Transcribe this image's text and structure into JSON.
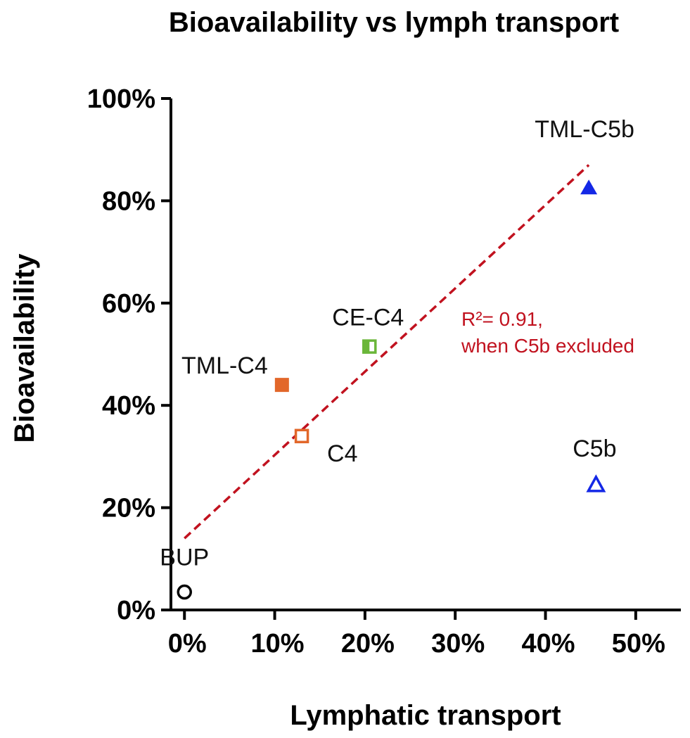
{
  "chart_data": {
    "type": "scatter",
    "title": "Bioavailability vs lymph transport",
    "xlabel": "Lymphatic transport",
    "ylabel": "Bioavailability",
    "xlim": [
      -1.5,
      55
    ],
    "ylim": [
      0,
      100
    ],
    "x_ticks": [
      0,
      10,
      20,
      30,
      40,
      50
    ],
    "y_ticks": [
      0,
      20,
      40,
      60,
      80,
      100
    ],
    "x_tick_labels": [
      "0%",
      "10%",
      "20%",
      "30%",
      "40%",
      "50%"
    ],
    "y_tick_labels": [
      "0%",
      "20%",
      "40%",
      "60%",
      "80%",
      "100%"
    ],
    "grid": false,
    "points": [
      {
        "label": "BUP",
        "x": 0,
        "y": 3.5,
        "marker": "circle-open",
        "color": "#000000"
      },
      {
        "label": "TML-C4",
        "x": 10.8,
        "y": 44,
        "marker": "square-filled",
        "color": "#e2672a"
      },
      {
        "label": "C4",
        "x": 13,
        "y": 34,
        "marker": "square-open",
        "color": "#e2672a"
      },
      {
        "label": "CE-C4",
        "x": 20.5,
        "y": 51.5,
        "marker": "square-half",
        "color": "#6ab639"
      },
      {
        "label": "TML-C5b",
        "x": 44.8,
        "y": 82.5,
        "marker": "triangle-filled",
        "color": "#1428e6"
      },
      {
        "label": "C5b",
        "x": 45.6,
        "y": 24.5,
        "marker": "triangle-open",
        "color": "#1428e6"
      }
    ],
    "trendline": {
      "x": [
        0,
        44.8
      ],
      "y": [
        14,
        87
      ],
      "style": "dashed",
      "color": "#c1121f"
    },
    "annotation": {
      "lines": [
        "R²= 0.91,",
        "when C5b excluded"
      ],
      "color": "#c1121f"
    }
  }
}
